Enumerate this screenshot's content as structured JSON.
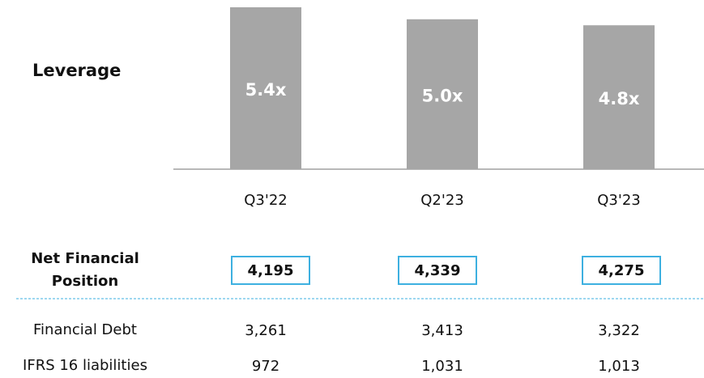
{
  "chart_data": {
    "type": "bar",
    "title": "Leverage",
    "categories": [
      "Q3'22",
      "Q2'23",
      "Q3'23"
    ],
    "values": [
      5.4,
      5.0,
      4.8
    ],
    "value_labels": [
      "5.4x",
      "5.0x",
      "4.8x"
    ],
    "color": "#a6a6a6"
  },
  "table": {
    "rows": [
      {
        "label": "Net Financial Position",
        "values": [
          "4,195",
          "4,339",
          "4,275"
        ]
      },
      {
        "label": "Financial Debt",
        "values": [
          "3,261",
          "3,413",
          "3,322"
        ]
      },
      {
        "label": "IFRS 16 liabilities",
        "values": [
          "972",
          "1,031",
          "1,013"
        ]
      }
    ]
  }
}
